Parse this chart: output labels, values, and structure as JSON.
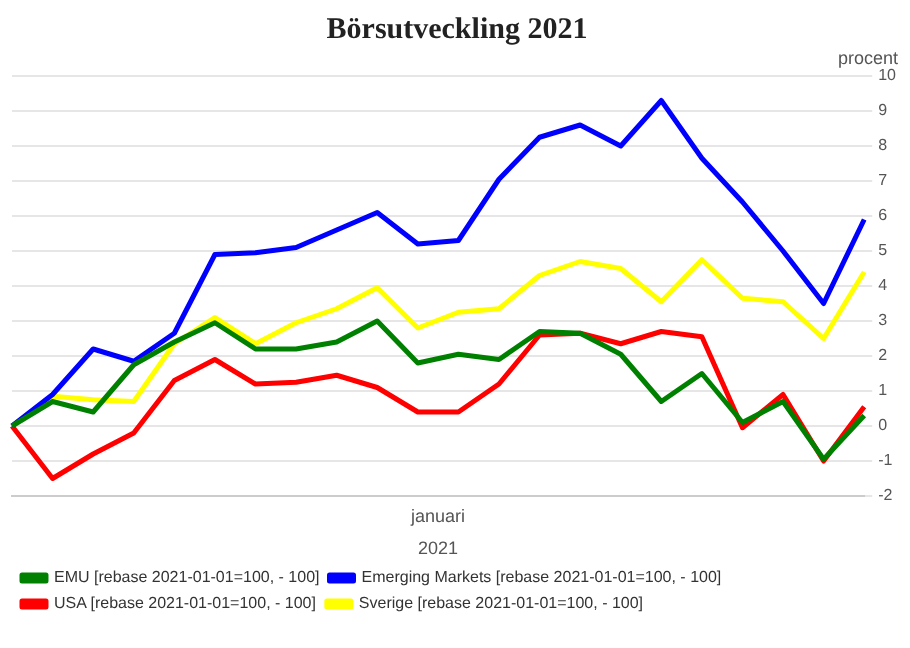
{
  "chart_data": {
    "type": "line",
    "title": "Börsutveckling 2021",
    "ylabel": "procent",
    "xlabel": "2021",
    "annotations": [
      "januari"
    ],
    "categories": [
      null,
      null,
      null,
      null,
      null,
      null,
      null,
      null,
      null,
      null,
      null,
      null,
      null,
      null,
      null,
      null,
      null,
      null,
      null,
      null,
      null,
      null
    ],
    "series": [
      {
        "name": "EMU [rebase 2021-01-01=100, - 100]",
        "color": "#008000",
        "values": [
          0,
          0.7,
          0.4,
          1.75,
          2.4,
          2.95,
          2.2,
          2.2,
          2.4,
          3.0,
          1.8,
          2.05,
          1.9,
          2.7,
          2.65,
          2.05,
          0.7,
          1.5,
          0.1,
          0.7,
          -0.95,
          0.3
        ]
      },
      {
        "name": "Emerging Markets [rebase 2021-01-01=100, - 100]",
        "color": "#0000ff",
        "values": [
          0,
          0.9,
          2.2,
          1.85,
          2.65,
          4.9,
          4.95,
          5.1,
          5.6,
          6.1,
          5.2,
          5.3,
          7.05,
          8.25,
          8.6,
          8.0,
          9.3,
          7.65,
          6.4,
          5.0,
          3.5,
          5.9
        ]
      },
      {
        "name": "USA [rebase 2021-01-01=100, - 100]",
        "color": "#ff0000",
        "values": [
          0,
          -1.5,
          -0.8,
          -0.2,
          1.3,
          1.9,
          1.2,
          1.25,
          1.45,
          1.1,
          0.4,
          0.4,
          1.2,
          2.6,
          2.65,
          2.35,
          2.7,
          2.55,
          -0.05,
          0.9,
          -1.0,
          0.55
        ]
      },
      {
        "name": "Sverige [rebase 2021-01-01=100, - 100]",
        "color": "#ffff00",
        "values": [
          0,
          0.85,
          0.75,
          0.7,
          2.35,
          3.1,
          2.35,
          2.95,
          3.35,
          3.95,
          2.8,
          3.25,
          3.35,
          4.3,
          4.7,
          4.5,
          3.55,
          4.75,
          3.65,
          3.55,
          2.5,
          4.4
        ]
      }
    ],
    "ylim": [
      -2,
      10
    ],
    "yticks": [
      -2,
      -1,
      0,
      1,
      2,
      3,
      4,
      5,
      6,
      7,
      8,
      9,
      10
    ],
    "grid": "y",
    "legend": "bottom",
    "marker": "none",
    "line_style": "solid"
  }
}
